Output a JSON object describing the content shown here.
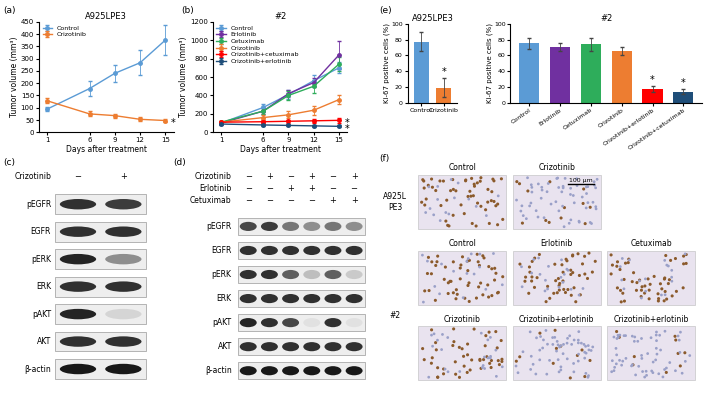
{
  "panel_labels": [
    "(a)",
    "(b)",
    "(c)",
    "(d)",
    "(e)",
    "(f)"
  ],
  "chart_data": [
    {
      "type": "line",
      "title": "A925LPE3",
      "x": [
        1,
        6,
        9,
        12,
        15
      ],
      "xlabel": "Days after treatment",
      "ylabel": "Tumor volume (mm³)",
      "xlim": [
        0,
        16
      ],
      "xticks": [
        1,
        6,
        9,
        12,
        15
      ],
      "ylim": [
        0,
        450
      ],
      "yticks": [
        0,
        50,
        100,
        150,
        200,
        250,
        300,
        350,
        400,
        450
      ],
      "legend": "upper left",
      "marker": "o",
      "series": [
        {
          "name": "Control",
          "color": "#5B9BD5",
          "values": [
            95,
            178,
            240,
            283,
            375
          ],
          "errors": [
            10,
            30,
            35,
            50,
            60
          ]
        },
        {
          "name": "Crizotinib",
          "color": "#ED7D31",
          "values": [
            128,
            75,
            68,
            53,
            48
          ],
          "errors": [
            10,
            10,
            8,
            8,
            6
          ]
        }
      ],
      "annotations": [
        {
          "text": "*",
          "x": 15,
          "y": 48
        }
      ]
    },
    {
      "type": "line",
      "title": "#2",
      "x": [
        1,
        6,
        9,
        12,
        15
      ],
      "xlabel": "Days after treatment",
      "ylabel": "Tumor volume (mm³)",
      "xlim": [
        0,
        16
      ],
      "xticks": [
        1,
        6,
        9,
        12,
        15
      ],
      "ylim": [
        0,
        1200
      ],
      "yticks": [
        0,
        200,
        400,
        600,
        800,
        1000,
        1200
      ],
      "legend": "upper left",
      "marker": "o",
      "series": [
        {
          "name": "Control",
          "color": "#5B9BD5",
          "values": [
            100,
            270,
            410,
            560,
            700
          ],
          "errors": [
            15,
            40,
            50,
            60,
            60
          ]
        },
        {
          "name": "Erlotinib",
          "color": "#7030A0",
          "values": [
            100,
            230,
            420,
            540,
            840
          ],
          "errors": [
            10,
            30,
            40,
            50,
            150
          ]
        },
        {
          "name": "Cetuximab",
          "color": "#2EAD5B",
          "values": [
            110,
            230,
            400,
            500,
            740
          ],
          "errors": [
            10,
            30,
            50,
            70,
            80
          ]
        },
        {
          "name": "Crizotinib",
          "color": "#ED7D31",
          "values": [
            110,
            160,
            190,
            240,
            355
          ],
          "errors": [
            10,
            30,
            40,
            50,
            50
          ]
        },
        {
          "name": "Crizotinib+cetuximab",
          "color": "#FF0000",
          "values": [
            110,
            115,
            120,
            125,
            130
          ],
          "errors": [
            10,
            15,
            15,
            20,
            30
          ]
        },
        {
          "name": "Crizotinib+erlotinib",
          "color": "#1F4E79",
          "values": [
            90,
            80,
            75,
            70,
            65
          ],
          "errors": [
            10,
            10,
            10,
            10,
            10
          ]
        }
      ],
      "annotations": [
        {
          "text": "*",
          "x": 15,
          "y": 130
        },
        {
          "text": "*",
          "x": 15,
          "y": 65
        }
      ]
    },
    {
      "type": "bar",
      "title": "A925LPE3",
      "categories": [
        "Control",
        "Crizotinib"
      ],
      "values": [
        77,
        19
      ],
      "errors": [
        12,
        12
      ],
      "colors": [
        "#5B9BD5",
        "#ED7D31"
      ],
      "ylabel": "Ki-67 positive cells (%)",
      "ylim": [
        0,
        100
      ],
      "yticks": [
        0,
        20,
        40,
        60,
        80,
        100
      ],
      "annotations": [
        {
          "text": "*",
          "category": "Crizotinib",
          "y": 33
        }
      ]
    },
    {
      "type": "bar",
      "title": "#2",
      "categories": [
        "Control",
        "Erlotinib",
        "Cetuximab",
        "Crizotinib",
        "Crizotinib+erlotinib",
        "Crizotinib+cetuximab"
      ],
      "values": [
        75,
        71,
        74,
        66,
        17,
        14
      ],
      "errors": [
        7,
        5,
        8,
        5,
        4,
        3
      ],
      "colors": [
        "#5B9BD5",
        "#7030A0",
        "#2EAD5B",
        "#ED7D31",
        "#FF0000",
        "#1F4E79"
      ],
      "ylabel": "Ki-67 positive cells (%)",
      "ylim": [
        0,
        100
      ],
      "yticks": [
        0,
        20,
        40,
        60,
        80,
        100
      ],
      "annotations": [
        {
          "text": "*",
          "category": "Crizotinib+erlotinib",
          "y": 23
        },
        {
          "text": "*",
          "category": "Crizotinib+cetuximab",
          "y": 19
        }
      ]
    }
  ],
  "blots": [
    {
      "treatments": [
        {
          "name": "Crizotinib",
          "lanes": [
            "−",
            "+"
          ]
        }
      ],
      "rows": [
        {
          "label": "pEGFR",
          "intensities": [
            0.8,
            0.75
          ]
        },
        {
          "label": "EGFR",
          "intensities": [
            0.8,
            0.8
          ]
        },
        {
          "label": "pERK",
          "intensities": [
            0.85,
            0.4
          ]
        },
        {
          "label": "ERK",
          "intensities": [
            0.8,
            0.8
          ]
        },
        {
          "label": "pAKT",
          "intensities": [
            0.85,
            0.1
          ]
        },
        {
          "label": "AKT",
          "intensities": [
            0.8,
            0.8
          ]
        },
        {
          "label": "β-actin",
          "intensities": [
            0.9,
            0.9
          ]
        }
      ]
    },
    {
      "treatments": [
        {
          "name": "Crizotinib",
          "lanes": [
            "−",
            "+",
            "−",
            "+",
            "−",
            "+"
          ]
        },
        {
          "name": "Erlotinib",
          "lanes": [
            "−",
            "−",
            "+",
            "+",
            "−",
            "−"
          ]
        },
        {
          "name": "Cetuximab",
          "lanes": [
            "−",
            "−",
            "−",
            "−",
            "+",
            "+"
          ]
        }
      ],
      "rows": [
        {
          "label": "pEGFR",
          "intensities": [
            0.7,
            0.75,
            0.5,
            0.4,
            0.5,
            0.4
          ]
        },
        {
          "label": "EGFR",
          "intensities": [
            0.8,
            0.8,
            0.8,
            0.8,
            0.8,
            0.8
          ]
        },
        {
          "label": "pERK",
          "intensities": [
            0.8,
            0.8,
            0.6,
            0.2,
            0.6,
            0.15
          ]
        },
        {
          "label": "ERK",
          "intensities": [
            0.8,
            0.8,
            0.8,
            0.8,
            0.8,
            0.8
          ]
        },
        {
          "label": "pAKT",
          "intensities": [
            0.85,
            0.8,
            0.7,
            0.05,
            0.8,
            0.05
          ]
        },
        {
          "label": "AKT",
          "intensities": [
            0.8,
            0.8,
            0.8,
            0.8,
            0.8,
            0.8
          ]
        },
        {
          "label": "β-actin",
          "intensities": [
            0.9,
            0.9,
            0.9,
            0.9,
            0.9,
            0.9
          ]
        }
      ]
    }
  ],
  "ihc": {
    "row_groups": [
      {
        "label": "A925L\nPE3",
        "images": [
          [
            "Control",
            "Crizotinib"
          ]
        ]
      },
      {
        "label": "#2",
        "images": [
          [
            "Control",
            "Erlotinib",
            "Cetuximab"
          ],
          [
            "Crizotinib",
            "Crizotinib+erlotinib",
            "Crizotinib+erlotinib"
          ]
        ]
      }
    ],
    "scale_bar": "100 µm"
  }
}
